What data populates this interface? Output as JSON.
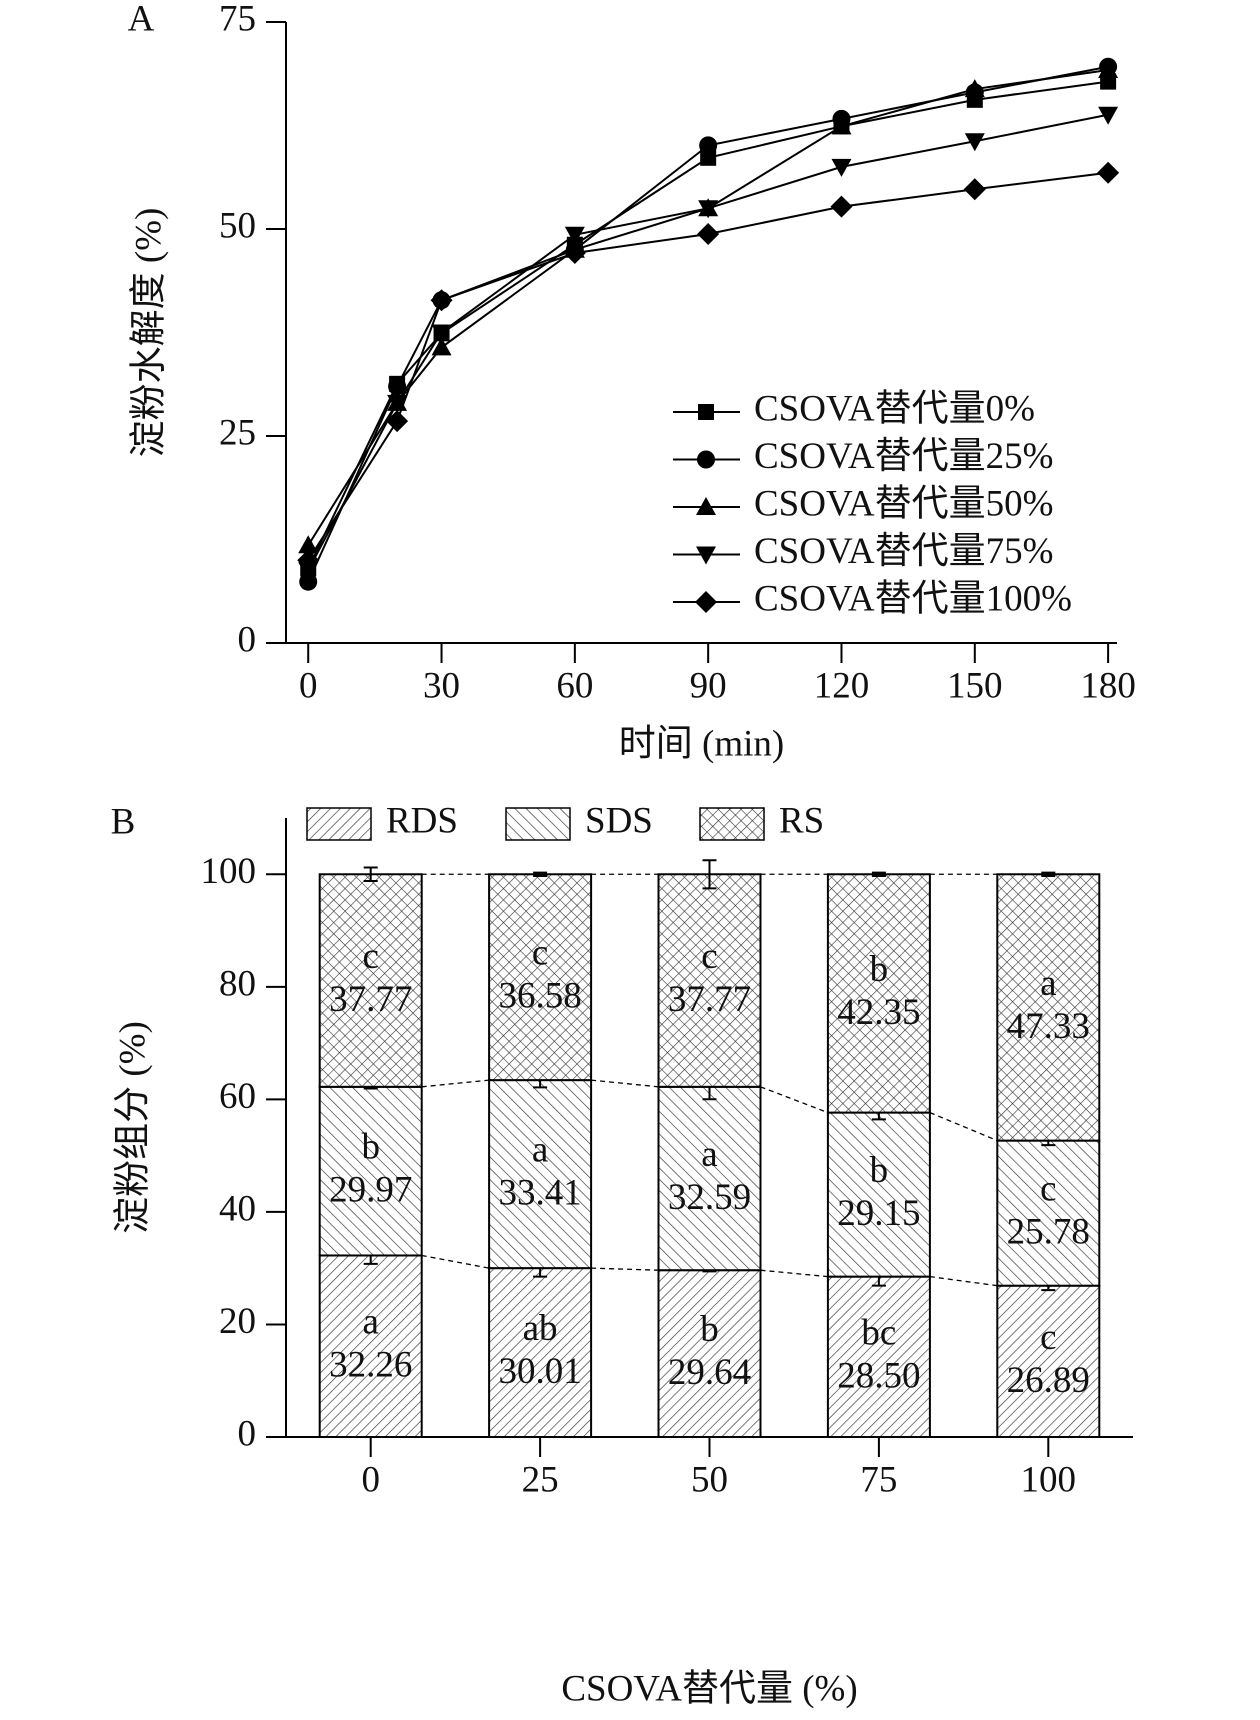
{
  "chart_data": [
    {
      "type": "line",
      "panel_label": "A",
      "x_label": "时间 (min)",
      "y_label": "淀粉水解度 (%)",
      "x": [
        0,
        20,
        30,
        60,
        90,
        120,
        150,
        180
      ],
      "xlim": [
        -5,
        182
      ],
      "xticks": [
        0,
        30,
        60,
        90,
        120,
        150,
        180
      ],
      "ylim": [
        0,
        75
      ],
      "yticks": [
        0,
        25,
        50,
        75
      ],
      "legend": "lower right",
      "series": [
        {
          "name": "CSOVA替代量0%",
          "color": "#000000",
          "marker": "square",
          "values": [
            9,
            31.3,
            37.4,
            48.1,
            58.6,
            62.4,
            65.6,
            67.8
          ]
        },
        {
          "name": "CSOVA替代量25%",
          "color": "#000000",
          "marker": "circle",
          "values": [
            7.4,
            31.0,
            41.4,
            47.5,
            60.1,
            63.3,
            66.5,
            69.6
          ]
        },
        {
          "name": "CSOVA替代量50%",
          "color": "#000000",
          "marker": "triangle-up",
          "values": [
            11.8,
            29.0,
            35.7,
            47.5,
            52.5,
            62.4,
            66.9,
            69.2
          ]
        },
        {
          "name": "CSOVA替代量75%",
          "color": "#000000",
          "marker": "triangle-down",
          "values": [
            8.8,
            29.0,
            37.5,
            49.3,
            52.5,
            57.5,
            60.6,
            63.8
          ]
        },
        {
          "name": "CSOVA替代量100%",
          "color": "#000000",
          "marker": "diamond",
          "values": [
            10.0,
            26.8,
            41.4,
            47.1,
            49.4,
            52.7,
            54.8,
            56.8
          ]
        }
      ]
    },
    {
      "type": "stacked_bar",
      "panel_label": "B",
      "x_label": "CSOVA替代量 (%)",
      "y_label": "淀粉组分 (%)",
      "categories": [
        "0",
        "25",
        "50",
        "75",
        "100"
      ],
      "ylim": [
        0,
        110
      ],
      "yticks": [
        0,
        20,
        40,
        60,
        80,
        100
      ],
      "legend": "top left",
      "series": [
        {
          "name": "RDS",
          "hatch": "/",
          "values": [
            32.26,
            30.01,
            29.64,
            28.5,
            26.89
          ],
          "value_labels": [
            "32.26",
            "30.01",
            "29.64",
            "28.50",
            "26.89"
          ],
          "errors": [
            1.5,
            1.5,
            0.2,
            1.6,
            0.8
          ],
          "letters": [
            "a",
            "ab",
            "b",
            "bc",
            "c"
          ]
        },
        {
          "name": "SDS",
          "hatch": "\\",
          "values": [
            29.97,
            33.41,
            32.59,
            29.15,
            25.78
          ],
          "value_labels": [
            "29.97",
            "33.41",
            "32.59",
            "29.15",
            "25.78"
          ],
          "errors": [
            0.3,
            1.3,
            2.2,
            1.2,
            0.8
          ],
          "letters": [
            "b",
            "a",
            "a",
            "b",
            "c"
          ]
        },
        {
          "name": "RS",
          "hatch": "x",
          "values": [
            37.77,
            36.58,
            37.77,
            42.35,
            47.33
          ],
          "value_labels": [
            "37.77",
            "36.58",
            "37.77",
            "42.35",
            "47.33"
          ],
          "errors": [
            1.2,
            0.3,
            2.5,
            0.3,
            0.3
          ],
          "letters": [
            "c",
            "c",
            "c",
            "b",
            "a"
          ]
        }
      ]
    }
  ]
}
